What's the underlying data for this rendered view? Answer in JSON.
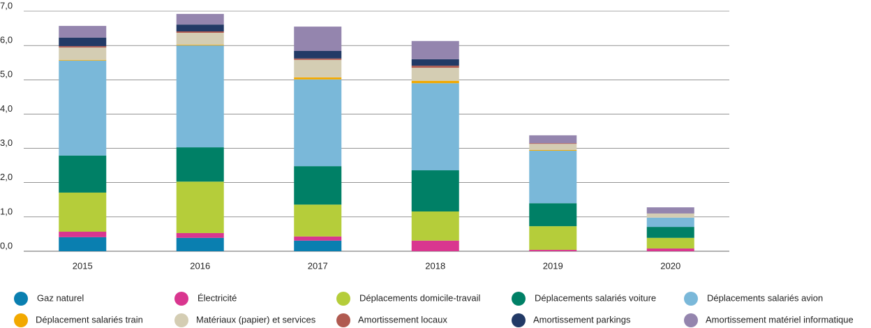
{
  "chart_data": {
    "type": "stacked_bar",
    "categories": [
      "2015",
      "2016",
      "2017",
      "2018",
      "2019",
      "2020"
    ],
    "ylim": [
      0,
      7
    ],
    "yticks": [
      {
        "value": 0,
        "label": "0,0"
      },
      {
        "value": 1,
        "label": "1,0"
      },
      {
        "value": 2,
        "label": "2,0"
      },
      {
        "value": 3,
        "label": "3,0"
      },
      {
        "value": 4,
        "label": "4,0"
      },
      {
        "value": 5,
        "label": "5,0"
      },
      {
        "value": 6,
        "label": "6,0"
      },
      {
        "value": 7,
        "label": "7,0"
      }
    ],
    "grid": true,
    "legend": "bottom",
    "series": [
      {
        "name": "Gaz naturel",
        "color": "#0a7fb0",
        "values": [
          0.41,
          0.39,
          0.31,
          0,
          0,
          0
        ]
      },
      {
        "name": "Électricité",
        "color": "#d9368f",
        "values": [
          0.16,
          0.14,
          0.12,
          0.31,
          0.04,
          0.08
        ]
      },
      {
        "name": "Déplacements domicile-travail",
        "color": "#b5cd3a",
        "values": [
          1.14,
          1.5,
          0.93,
          0.85,
          0.69,
          0.31
        ]
      },
      {
        "name": "Déplacements salariés voiture",
        "color": "#008066",
        "values": [
          1.08,
          1.0,
          1.12,
          1.2,
          0.67,
          0.32
        ]
      },
      {
        "name": "Déplacements salariés avion",
        "color": "#7ab8d9",
        "values": [
          2.77,
          2.97,
          2.53,
          2.54,
          1.53,
          0.27
        ]
      },
      {
        "name": "Déplacement salariés train",
        "color": "#f2a900",
        "values": [
          0.02,
          0.02,
          0.06,
          0.07,
          0.02,
          0
        ]
      },
      {
        "name": "Matériaux (papier) et services",
        "color": "#d4cdb3",
        "values": [
          0.36,
          0.35,
          0.51,
          0.38,
          0.18,
          0.12
        ]
      },
      {
        "name": "Amortissement locaux",
        "color": "#b05a50",
        "values": [
          0.04,
          0.04,
          0.04,
          0.06,
          0.02,
          0
        ]
      },
      {
        "name": "Amortissement parkings",
        "color": "#223a66",
        "values": [
          0.25,
          0.2,
          0.22,
          0.19,
          0,
          0
        ]
      },
      {
        "name": "Amortissement matériel informatique",
        "color": "#9485ae",
        "values": [
          0.34,
          0.31,
          0.71,
          0.53,
          0.23,
          0.18
        ]
      }
    ]
  }
}
